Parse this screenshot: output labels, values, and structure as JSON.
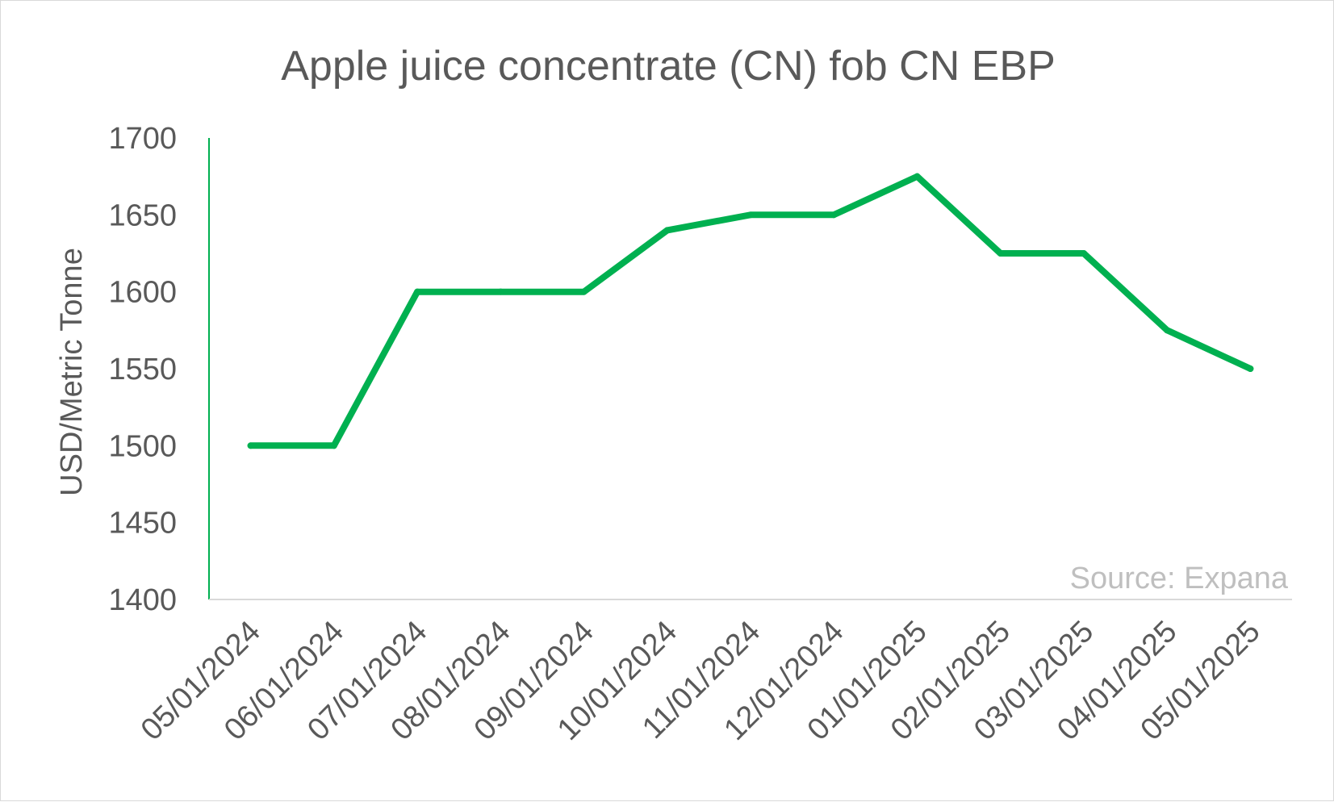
{
  "chart_data": {
    "type": "line",
    "title": "Apple juice concentrate (CN) fob CN EBP",
    "ylabel": "USD/Metric Tonne",
    "xlabel": "",
    "ylim": [
      1400,
      1700
    ],
    "yticks": [
      "1700",
      "1650",
      "1600",
      "1550",
      "1500",
      "1450",
      "1400"
    ],
    "categories": [
      "05/01/2024",
      "06/01/2024",
      "07/01/2024",
      "08/01/2024",
      "09/01/2024",
      "10/01/2024",
      "11/01/2024",
      "12/01/2024",
      "01/01/2025",
      "02/01/2025",
      "03/01/2025",
      "04/01/2025",
      "05/01/2025"
    ],
    "series": [
      {
        "values": [
          1500,
          1500,
          1600,
          1600,
          1600,
          1640,
          1650,
          1650,
          1675,
          1625,
          1625,
          1575,
          1550
        ],
        "color": "#00b050"
      }
    ],
    "annotation": "Source: Expana",
    "grid": false,
    "legend": "none"
  }
}
